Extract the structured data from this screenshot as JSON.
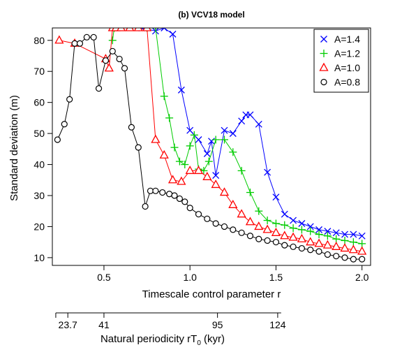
{
  "chart_data": {
    "type": "line",
    "title": "(b) VCV18 model",
    "xlabel": "Timescale control parameter r",
    "ylabel": "Standard deviation (m)",
    "secondary_xlabel": {
      "text": "Natural periodicity rT",
      "sub": "0",
      "unit": " (kyr)"
    },
    "xlim": [
      0.2,
      2.05
    ],
    "ylim": [
      7.5,
      84
    ],
    "x_ticks": [
      0.5,
      1.0,
      1.5,
      2.0
    ],
    "x_tick_labels": [
      "0.5",
      "1.0",
      "1.5",
      "2.0"
    ],
    "y_ticks": [
      10,
      20,
      30,
      40,
      50,
      60,
      70,
      80
    ],
    "y_tick_labels": [
      "10",
      "20",
      "30",
      "40",
      "50",
      "60",
      "70",
      "80"
    ],
    "secondary_ticks": [
      {
        "r": 0.29,
        "label": "23.7"
      },
      {
        "r": 0.5,
        "label": "41"
      },
      {
        "r": 1.16,
        "label": "95"
      },
      {
        "r": 1.51,
        "label": "124"
      }
    ],
    "secondary_range_r": [
      0.22,
      1.53
    ],
    "grid": false,
    "legend_position": "top-right",
    "series": [
      {
        "name": "A=1.4",
        "marker": "x",
        "color": "#0000ff",
        "x": [
          0.72,
          0.8,
          0.85,
          0.9,
          0.95,
          1.0,
          1.05,
          1.1,
          1.125,
          1.15,
          1.2,
          1.25,
          1.3,
          1.325,
          1.35,
          1.4,
          1.45,
          1.5,
          1.55,
          1.6,
          1.65,
          1.7,
          1.75,
          1.8,
          1.85,
          1.9,
          1.95,
          2.0
        ],
        "y": [
          84,
          83,
          84,
          82,
          64,
          51,
          48,
          43.5,
          47.5,
          36.5,
          51,
          50,
          54,
          56,
          56,
          53,
          37.5,
          29.5,
          24,
          22,
          21,
          20,
          19,
          18.5,
          18,
          17.5,
          17.5,
          17
        ]
      },
      {
        "name": "A=1.2",
        "marker": "+",
        "color": "#00cc00",
        "x": [
          0.55,
          0.56,
          0.75,
          0.8,
          0.85,
          0.88,
          0.91,
          0.94,
          0.97,
          1.0,
          1.025,
          1.05,
          1.08,
          1.11,
          1.15,
          1.2,
          1.25,
          1.3,
          1.35,
          1.4,
          1.45,
          1.5,
          1.55,
          1.6,
          1.65,
          1.7,
          1.75,
          1.8,
          1.85,
          1.9,
          1.95,
          2.0
        ],
        "y": [
          80,
          84,
          84,
          84,
          62,
          55,
          45.5,
          41,
          40,
          46,
          49.5,
          38.5,
          38,
          41,
          48,
          48,
          44,
          38,
          31,
          25,
          22,
          21,
          20.5,
          19.5,
          19,
          18.5,
          17.5,
          17,
          16,
          15.5,
          15,
          14.5
        ]
      },
      {
        "name": "A=1.0",
        "marker": "triangle",
        "color": "#ff0000",
        "x": [
          0.24,
          0.33,
          0.51,
          0.53,
          0.55,
          0.57,
          0.6,
          0.65,
          0.7,
          0.75,
          0.8,
          0.85,
          0.9,
          0.95,
          1.0,
          1.05,
          1.1,
          1.15,
          1.2,
          1.25,
          1.3,
          1.35,
          1.4,
          1.45,
          1.5,
          1.55,
          1.6,
          1.65,
          1.7,
          1.75,
          1.8,
          1.85,
          1.9,
          1.95,
          2.0
        ],
        "y": [
          80,
          79,
          74,
          71,
          84,
          84,
          84,
          84,
          84,
          84,
          48,
          43,
          35,
          34.5,
          38,
          38,
          36,
          33.5,
          31,
          27,
          24,
          21.5,
          20,
          19,
          18,
          17,
          16.5,
          16,
          15,
          14.5,
          14,
          13.5,
          13,
          12.5,
          12
        ]
      },
      {
        "name": "A=0.8",
        "marker": "circle",
        "color": "#000000",
        "x": [
          0.23,
          0.27,
          0.3,
          0.33,
          0.36,
          0.4,
          0.44,
          0.47,
          0.51,
          0.55,
          0.59,
          0.62,
          0.66,
          0.7,
          0.74,
          0.77,
          0.8,
          0.84,
          0.88,
          0.91,
          0.94,
          0.97,
          1.0,
          1.05,
          1.1,
          1.15,
          1.2,
          1.25,
          1.3,
          1.35,
          1.4,
          1.45,
          1.5,
          1.55,
          1.6,
          1.65,
          1.7,
          1.75,
          1.8,
          1.85,
          1.9,
          1.95,
          2.0
        ],
        "y": [
          48,
          53,
          61,
          79,
          79,
          81,
          81,
          64.5,
          73.5,
          76.5,
          74,
          71,
          52,
          45.5,
          26.5,
          31.5,
          31.5,
          31,
          30.5,
          30,
          29,
          28,
          26,
          24,
          22.5,
          21,
          20,
          19,
          18,
          17,
          16,
          15.5,
          15,
          14,
          13.5,
          13,
          12.5,
          12,
          11,
          10.5,
          10,
          9.5,
          9.5
        ]
      }
    ]
  }
}
